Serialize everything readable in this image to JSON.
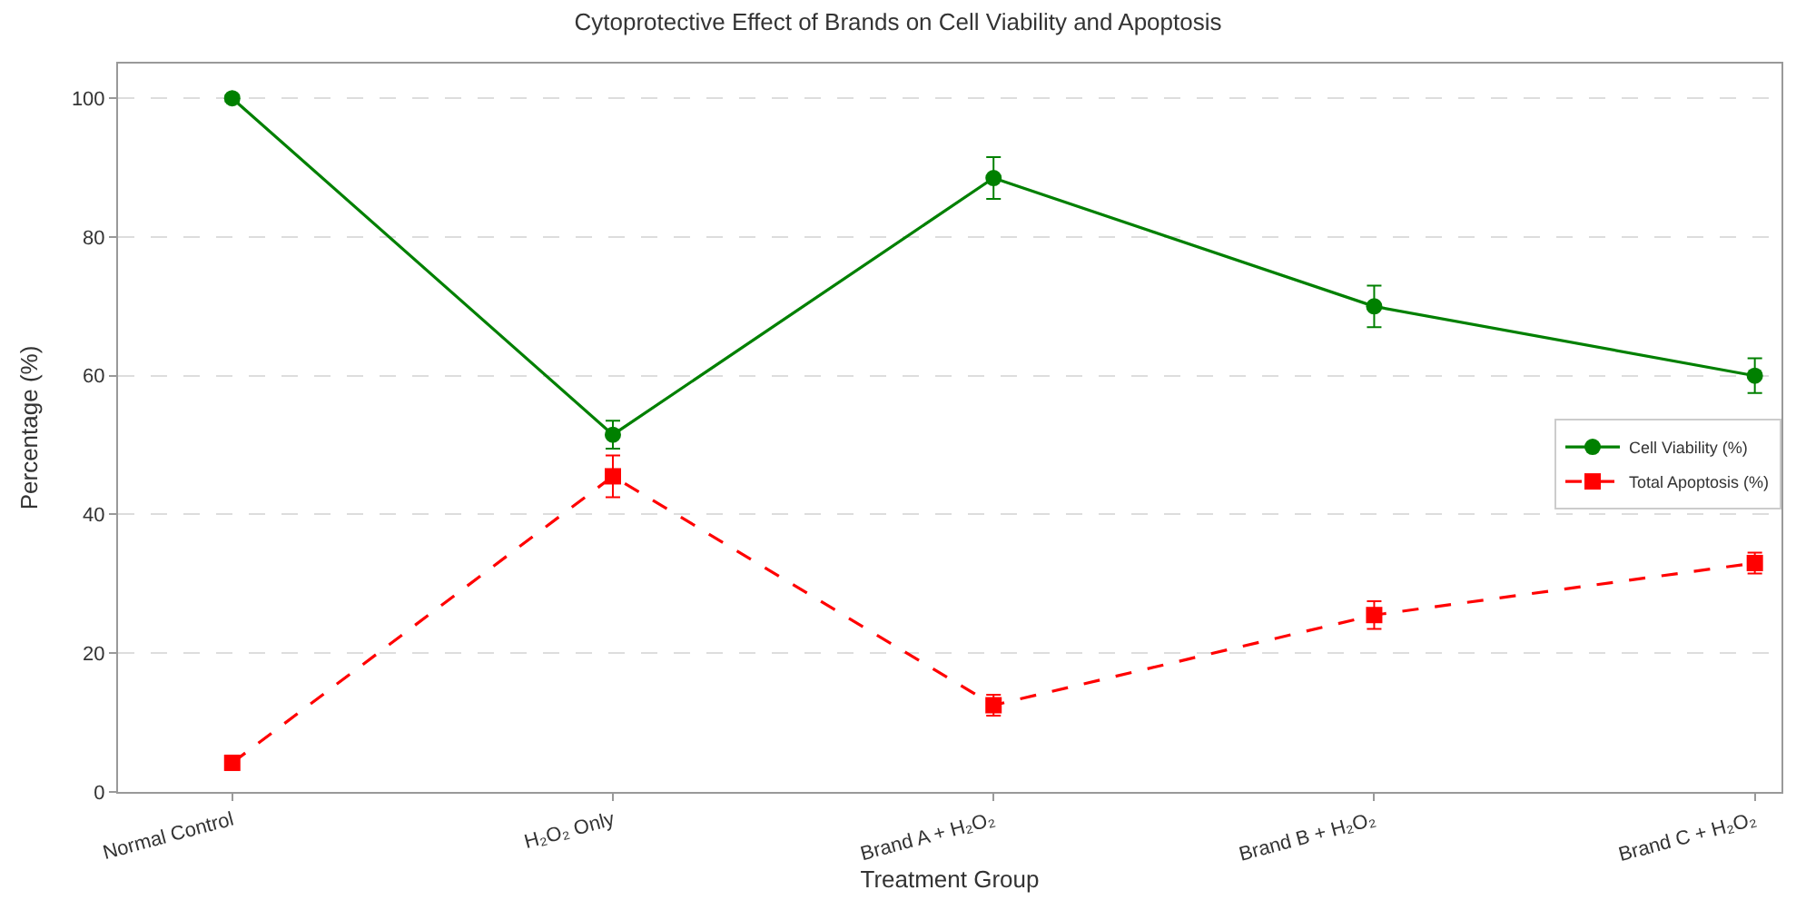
{
  "chart_data": {
    "type": "line",
    "title": "Cytoprotective Effect of Brands on Cell Viability and Apoptosis",
    "xlabel": "Treatment Group",
    "ylabel": "Percentage (%)",
    "categories": [
      "Normal Control",
      "H₂O₂ Only",
      "Brand A + H₂O₂",
      "Brand B + H₂O₂",
      "Brand C + H₂O₂"
    ],
    "series": [
      {
        "name": "Cell Viability (%)",
        "color": "#008000",
        "values": [
          100,
          51.5,
          88.5,
          70,
          60
        ],
        "errors": [
          0.5,
          2,
          3,
          3,
          2.5
        ],
        "marker": "circle",
        "line_style": "solid"
      },
      {
        "name": "Total Apoptosis (%)",
        "color": "#ff0000",
        "values": [
          4.2,
          45.5,
          12.5,
          25.5,
          33
        ],
        "errors": [
          1,
          3,
          1.5,
          2,
          1.5
        ],
        "marker": "square",
        "line_style": "dashed"
      }
    ],
    "ylim": [
      0,
      105
    ],
    "yticks": [
      0,
      20,
      40,
      60,
      80,
      100
    ],
    "grid": "y",
    "legend": "right"
  }
}
